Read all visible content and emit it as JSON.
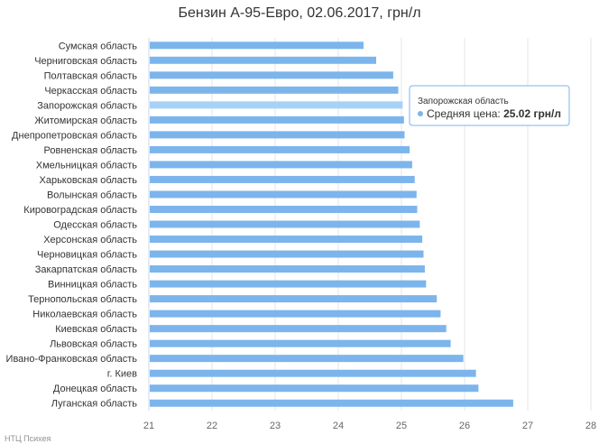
{
  "chart_data": {
    "type": "bar",
    "title": "Бензин А-95-Евро, 02.06.2017, грн/л",
    "categories": [
      "Сумская область",
      "Черниговская область",
      "Полтавская область",
      "Черкасская область",
      "Запорожская область",
      "Житомирская область",
      "Днепропетровская область",
      "Ровненская область",
      "Хмельницкая область",
      "Харьковская область",
      "Волынская область",
      "Кировоградская область",
      "Одесская область",
      "Херсонская область",
      "Черновицкая область",
      "Закарпатская область",
      "Винницкая область",
      "Тернопольская область",
      "Николаевская область",
      "Киевская область",
      "Львовская область",
      "Ивано-Франковская область",
      "г. Киев",
      "Донецкая область",
      "Луганская область"
    ],
    "series": [
      {
        "name": "Средняя цена",
        "values": [
          24.4,
          24.6,
          24.87,
          24.95,
          25.02,
          25.04,
          25.05,
          25.13,
          25.17,
          25.21,
          25.24,
          25.25,
          25.29,
          25.33,
          25.35,
          25.37,
          25.39,
          25.56,
          25.62,
          25.71,
          25.78,
          25.98,
          26.18,
          26.22,
          26.77
        ]
      }
    ],
    "xlim": [
      21,
      28
    ],
    "ticks": [
      21,
      22,
      23,
      24,
      25,
      26,
      27,
      28
    ],
    "xlabel": "",
    "ylabel": "",
    "grid": "vertical",
    "legend": "none",
    "colors": {
      "bar": "#7cb5ec",
      "bar_hover": "#a7d2f8",
      "grid": "#e6e6e6",
      "axis": "#ccd6eb"
    },
    "tooltip": {
      "category": "Запорожская область",
      "label": "Средняя цена",
      "value": "25.02 грн/л",
      "index": 4
    }
  },
  "credits": "НТЦ Психея"
}
